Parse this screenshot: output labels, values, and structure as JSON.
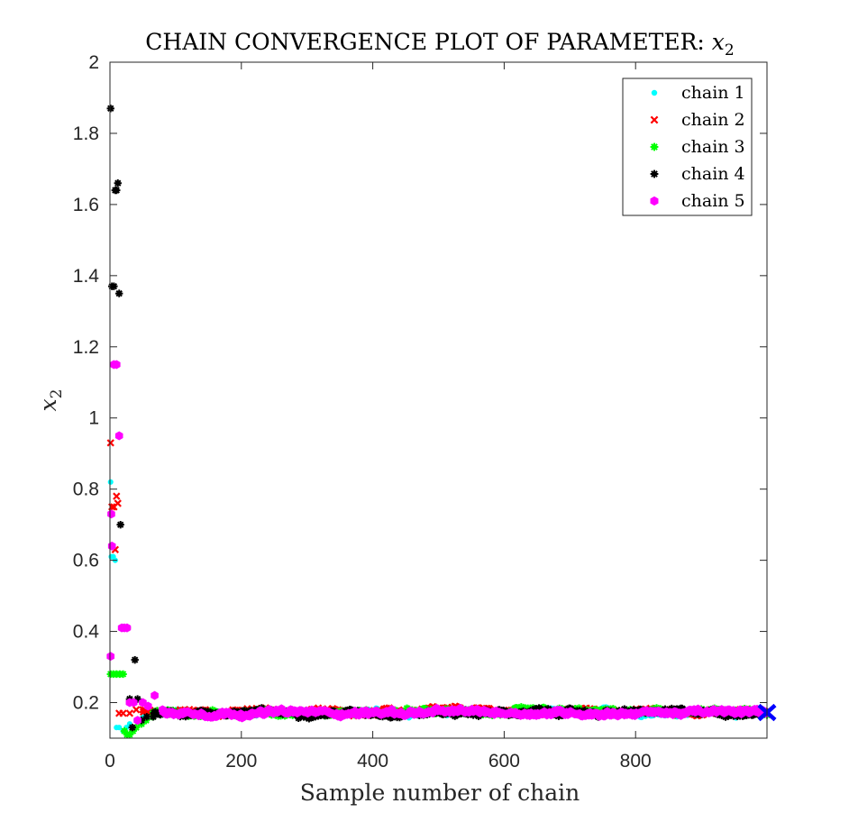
{
  "chart_data": {
    "type": "scatter",
    "title": "CHAIN CONVERGENCE PLOT OF PARAMETER:",
    "title_var": "x",
    "title_sub": "2",
    "xlabel": "Sample number of chain",
    "ylabel_var": "x",
    "ylabel_sub": "2",
    "xlim": [
      0,
      1000
    ],
    "ylim": [
      0.1,
      2
    ],
    "xticks": [
      0,
      200,
      400,
      600,
      800
    ],
    "xtick_labels": [
      "0",
      "200",
      "400",
      "600",
      "800"
    ],
    "yticks": [
      0.2,
      0.4,
      0.6,
      0.8,
      1.0,
      1.2,
      1.4,
      1.6,
      1.8,
      2.0
    ],
    "ytick_labels": [
      "0.2",
      "0.4",
      "0.6",
      "0.8",
      "1",
      "1.2",
      "1.4",
      "1.6",
      "1.8",
      "2"
    ],
    "grid": false,
    "legend_position": "top-right",
    "n_samples": 1000,
    "series": [
      {
        "name": "chain 1",
        "color": "#00ffff",
        "marker": "dot",
        "burn_in": [
          [
            1,
            0.82
          ],
          [
            2,
            0.61
          ],
          [
            5,
            0.61
          ],
          [
            8,
            0.6
          ],
          [
            10,
            0.13
          ],
          [
            14,
            0.13
          ],
          [
            20,
            0.12
          ],
          [
            25,
            0.13
          ],
          [
            30,
            0.14
          ],
          [
            40,
            0.15
          ],
          [
            50,
            0.16
          ],
          [
            60,
            0.17
          ]
        ],
        "equilibrium": 0.172,
        "spread": 0.018
      },
      {
        "name": "chain 2",
        "color": "#ff0000",
        "marker": "x",
        "burn_in": [
          [
            1,
            0.93
          ],
          [
            3,
            0.75
          ],
          [
            6,
            0.75
          ],
          [
            8,
            0.63
          ],
          [
            10,
            0.78
          ],
          [
            12,
            0.76
          ],
          [
            14,
            0.17
          ],
          [
            20,
            0.17
          ],
          [
            30,
            0.17
          ],
          [
            40,
            0.18
          ],
          [
            50,
            0.18
          ]
        ],
        "equilibrium": 0.175,
        "spread": 0.017
      },
      {
        "name": "chain 3",
        "color": "#00ff00",
        "marker": "star",
        "burn_in": [
          [
            1,
            0.28
          ],
          [
            5,
            0.28
          ],
          [
            10,
            0.28
          ],
          [
            15,
            0.28
          ],
          [
            20,
            0.28
          ],
          [
            22,
            0.12
          ],
          [
            26,
            0.11
          ],
          [
            30,
            0.11
          ],
          [
            35,
            0.12
          ],
          [
            40,
            0.13
          ],
          [
            48,
            0.14
          ],
          [
            55,
            0.15
          ],
          [
            65,
            0.16
          ]
        ],
        "equilibrium": 0.172,
        "spread": 0.018
      },
      {
        "name": "chain 4",
        "color": "#000000",
        "marker": "star",
        "burn_in": [
          [
            1,
            1.87
          ],
          [
            3,
            1.37
          ],
          [
            6,
            1.37
          ],
          [
            8,
            1.64
          ],
          [
            10,
            1.64
          ],
          [
            12,
            1.66
          ],
          [
            14,
            1.35
          ],
          [
            16,
            0.7
          ],
          [
            20,
            0.41
          ],
          [
            26,
            0.41
          ],
          [
            30,
            0.21
          ],
          [
            34,
            0.13
          ],
          [
            38,
            0.32
          ],
          [
            42,
            0.21
          ],
          [
            48,
            0.15
          ],
          [
            56,
            0.16
          ],
          [
            66,
            0.16
          ]
        ],
        "equilibrium": 0.172,
        "spread": 0.019
      },
      {
        "name": "chain 5",
        "color": "#ff00ff",
        "marker": "hexagon",
        "burn_in": [
          [
            1,
            0.33
          ],
          [
            2,
            0.73
          ],
          [
            3,
            0.64
          ],
          [
            6,
            1.15
          ],
          [
            10,
            1.15
          ],
          [
            14,
            0.95
          ],
          [
            18,
            0.41
          ],
          [
            22,
            0.41
          ],
          [
            26,
            0.41
          ],
          [
            30,
            0.2
          ],
          [
            36,
            0.2
          ],
          [
            42,
            0.15
          ],
          [
            50,
            0.2
          ],
          [
            58,
            0.19
          ],
          [
            68,
            0.22
          ],
          [
            80,
            0.18
          ]
        ],
        "equilibrium": 0.172,
        "spread": 0.017
      }
    ],
    "reference_marker": {
      "x": 1000,
      "y": 0.172,
      "color": "#0000ff",
      "marker": "x"
    }
  }
}
